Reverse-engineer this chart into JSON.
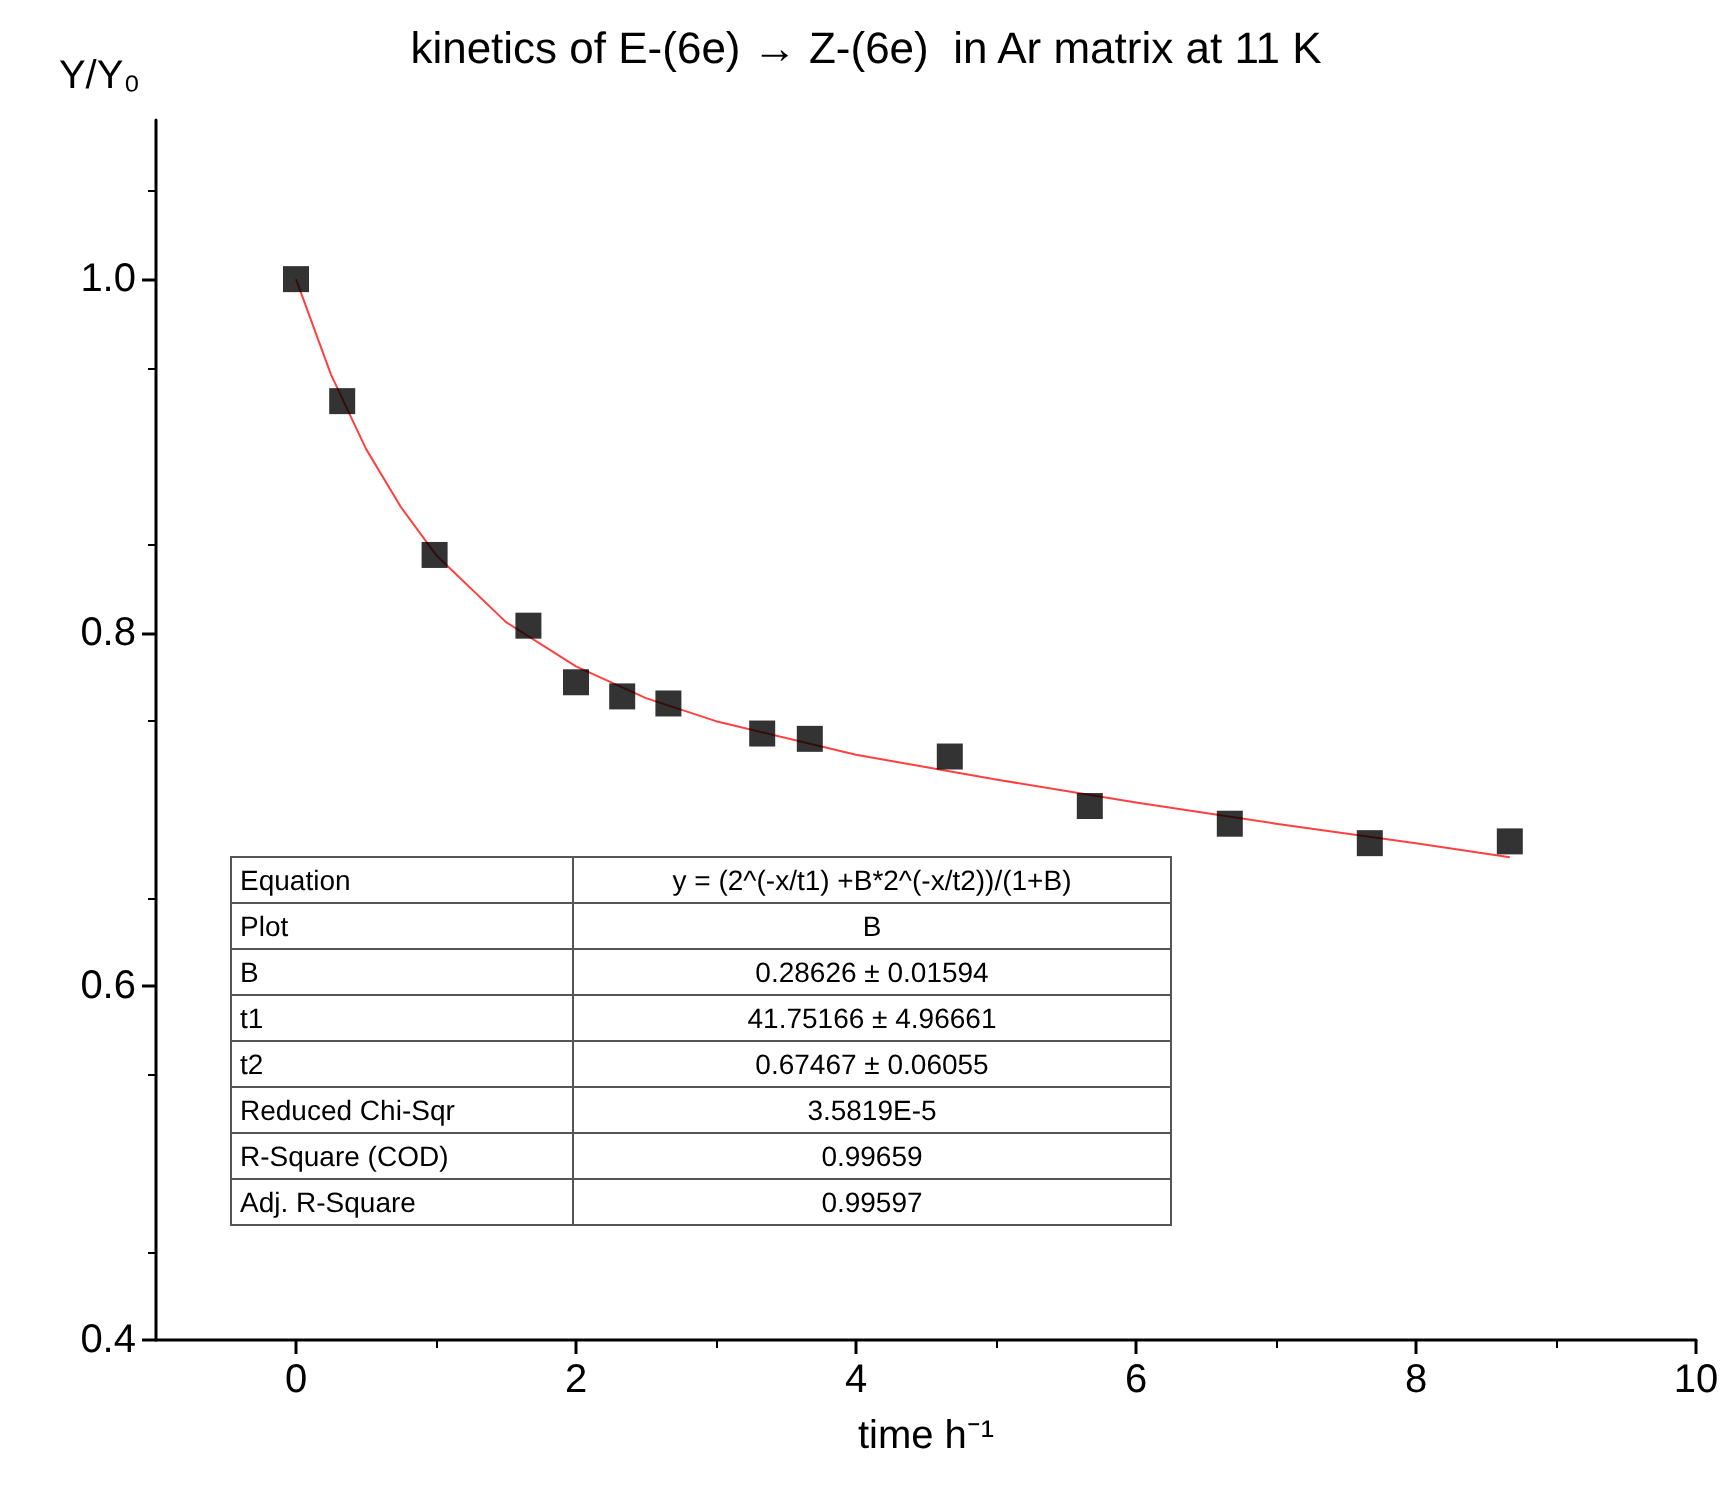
{
  "chart_data": {
    "type": "scatter",
    "title": "kinetics of E-(6e) → Z-(6e)  in Ar matrix at 11 K",
    "xlabel": "time h⁻¹",
    "ylabel": "Y/Y₀",
    "xlim": [
      -1,
      10
    ],
    "xticks": [
      0,
      2,
      4,
      6,
      8,
      10
    ],
    "ylim": [
      0.4,
      1.09
    ],
    "yticks": [
      0.4,
      0.6,
      0.8,
      {
        "value": 1,
        "label": "1.0"
      }
    ],
    "grid": false,
    "series": [
      {
        "color": "#000000",
        "marker": "square",
        "x": [
          0,
          0.33,
          0.99,
          1.66,
          2.0,
          2.33,
          2.66,
          3.33,
          3.67,
          4.67,
          5.67,
          6.67,
          7.67,
          8.67
        ],
        "values": [
          1.0,
          0.931,
          0.844,
          0.804,
          0.772,
          0.764,
          0.76,
          0.743,
          0.74,
          0.73,
          0.702,
          0.692,
          0.681,
          0.682
        ]
      },
      {
        "type": "line",
        "color": "#ff4040",
        "marker": "none",
        "line_style": "solid",
        "x": [
          0,
          0.25,
          0.5,
          0.75,
          1,
          1.5,
          2,
          2.5,
          3,
          4,
          5,
          6,
          7,
          8,
          8.67
        ],
        "values": [
          1.0,
          0.946,
          0.904,
          0.871,
          0.844,
          0.806,
          0.781,
          0.763,
          0.75,
          0.731,
          0.717,
          0.704,
          0.692,
          0.681,
          0.673
        ]
      }
    ],
    "annotations": [
      "Equation",
      "y = (2^(-x/t1) +B*2^(-x/t2))/(1+B)",
      "Plot",
      "B",
      "B",
      "0.28626 ± 0.01594",
      "t1",
      "41.75166 ± 4.96661",
      "t2",
      "0.67467 ± 0.06055",
      "Reduced Chi-Sqr",
      "3.5819E-5",
      "R-Square (COD)",
      "0.99659",
      "Adj. R-Square",
      "0.99597"
    ]
  }
}
